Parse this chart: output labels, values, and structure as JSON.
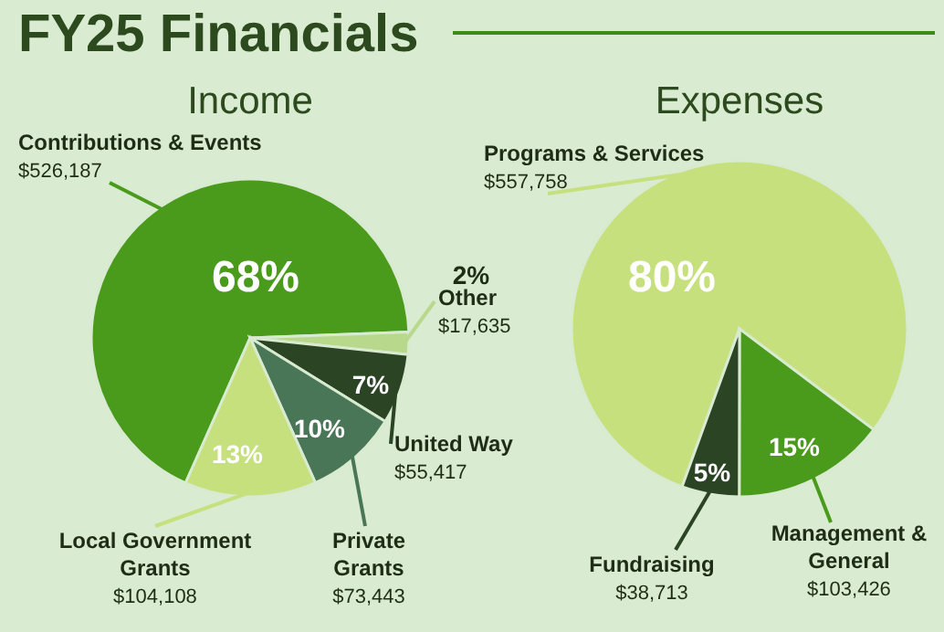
{
  "chart_data": [
    {
      "type": "other",
      "title": "FY25 Financials"
    },
    {
      "type": "pie",
      "title": "Income",
      "categories": [
        "Contributions & Events",
        "Other",
        "United Way",
        "Private Grants",
        "Local Government Grants"
      ],
      "values": [
        526187,
        17635,
        55417,
        73443,
        104108
      ],
      "colors": [
        "#4a9a1c",
        "#b8d98c",
        "#2b4424",
        "#4a7658",
        "#c6e07e"
      ],
      "value_labels": [
        "$526,187",
        "$17,635",
        "$55,417",
        "$73,443",
        "$104,108"
      ],
      "annotations": [
        {
          "text": "68%",
          "x": "Contributions & Events"
        },
        {
          "text": "2%",
          "x": "Other"
        },
        {
          "text": "7%",
          "x": "United Way"
        },
        {
          "text": "10%",
          "x": "Private Grants"
        },
        {
          "text": "13%",
          "x": "Local Government Grants"
        }
      ]
    },
    {
      "type": "pie",
      "title": "Expenses",
      "categories": [
        "Programs & Services",
        "Management & General",
        "Fundraising"
      ],
      "values": [
        557758,
        103426,
        38713
      ],
      "colors": [
        "#c6e07e",
        "#4a9a1c",
        "#2b4424"
      ],
      "value_labels": [
        "$557,758",
        "$103,426",
        "$38,713"
      ],
      "annotations": [
        {
          "text": "80%",
          "x": "Programs & Services"
        },
        {
          "text": "15%",
          "x": "Management & General"
        },
        {
          "text": "5%",
          "x": "Fundraising"
        }
      ]
    }
  ]
}
